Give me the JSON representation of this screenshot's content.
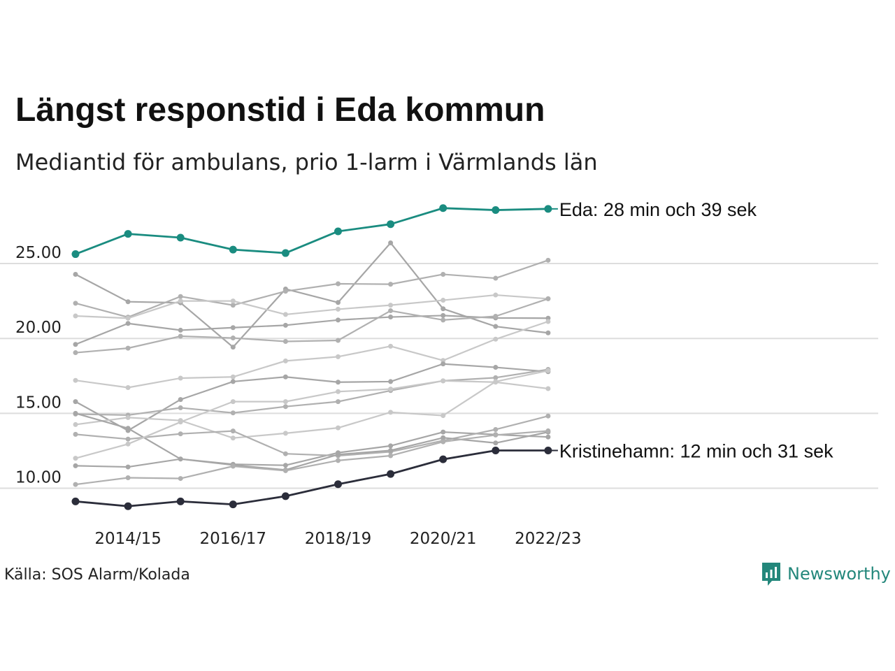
{
  "title": "Längst responstid i Eda kommun",
  "subtitle": "Mediantid för ambulans, prio 1-larm i Värmlands län",
  "source": "Källa: SOS Alarm/Kolada",
  "brand": "Newsworthy",
  "colors": {
    "highlight_top": "#1a8c80",
    "highlight_bottom": "#2b2d3a",
    "others": [
      "#b0b0b0",
      "#c8c8c8",
      "#a6a6a6"
    ],
    "grid": "#dddddd"
  },
  "chart_data": {
    "type": "line",
    "x": [
      "2013/14",
      "2014/15",
      "2015/16",
      "2016/17",
      "2017/18",
      "2018/19",
      "2019/20",
      "2020/21",
      "2021/22",
      "2022/23"
    ],
    "xticks": [
      "2014/15",
      "2016/17",
      "2018/19",
      "2020/21",
      "2022/23"
    ],
    "yticks": [
      10,
      15,
      20,
      25
    ],
    "ytick_labels": [
      "10.00",
      "15.00",
      "20.00",
      "25.00"
    ],
    "ylim": [
      8.5,
      29.5
    ],
    "grid": true,
    "series": [
      {
        "name": "Eda",
        "label": "Eda: 28 min och 39 sek",
        "highlight": "top",
        "values": [
          25.63,
          26.98,
          26.73,
          25.93,
          25.7,
          27.15,
          27.63,
          28.7,
          28.57,
          28.65
        ]
      },
      {
        "name": "Kristinehamn",
        "label": "Kristinehamn: 12 min och 31 sek",
        "highlight": "bottom",
        "values": [
          9.12,
          8.8,
          9.12,
          8.92,
          9.47,
          10.27,
          10.95,
          11.93,
          12.52,
          12.52
        ]
      },
      {
        "values": [
          24.28,
          22.45,
          22.38,
          19.42,
          23.3,
          22.4,
          26.38,
          21.98,
          20.8,
          20.37
        ]
      },
      {
        "values": [
          22.35,
          21.42,
          22.8,
          22.22,
          23.15,
          23.65,
          23.62,
          24.28,
          24.02,
          25.22
        ]
      },
      {
        "values": [
          21.5,
          21.35,
          22.5,
          22.5,
          21.6,
          21.95,
          22.22,
          22.55,
          22.9,
          22.65
        ]
      },
      {
        "values": [
          19.6,
          21.0,
          20.55,
          20.72,
          20.88,
          21.23,
          21.43,
          21.53,
          21.37,
          21.35
        ]
      },
      {
        "values": [
          19.05,
          19.35,
          20.15,
          20.03,
          19.8,
          19.87,
          21.85,
          21.23,
          21.48,
          22.65
        ]
      },
      {
        "values": [
          17.2,
          16.72,
          17.35,
          17.43,
          18.5,
          18.78,
          19.48,
          18.53,
          19.95,
          21.13
        ]
      },
      {
        "values": [
          15.78,
          13.85,
          15.92,
          17.12,
          17.43,
          17.08,
          17.12,
          18.3,
          18.07,
          17.78
        ]
      },
      {
        "values": [
          14.95,
          14.88,
          15.37,
          15.03,
          15.45,
          15.78,
          16.52,
          17.17,
          17.38,
          17.93
        ]
      },
      {
        "values": [
          14.25,
          14.72,
          14.52,
          13.35,
          13.67,
          14.03,
          15.07,
          14.85,
          17.12,
          17.85
        ]
      },
      {
        "values": [
          15.0,
          14.0,
          11.95,
          11.6,
          11.53,
          12.37,
          12.83,
          13.75,
          13.58,
          13.42
        ]
      },
      {
        "values": [
          13.6,
          13.28,
          13.63,
          13.82,
          12.3,
          12.17,
          12.43,
          13.18,
          13.92,
          14.82
        ]
      },
      {
        "values": [
          12.0,
          12.95,
          14.42,
          15.78,
          15.78,
          16.45,
          16.62,
          17.17,
          17.08,
          16.65
        ]
      },
      {
        "values": [
          11.5,
          11.42,
          11.95,
          11.55,
          11.22,
          12.25,
          12.52,
          13.37,
          13.02,
          13.75
        ]
      },
      {
        "values": [
          10.25,
          10.7,
          10.65,
          11.47,
          11.17,
          11.85,
          12.17,
          13.1,
          13.55,
          13.83
        ]
      }
    ]
  }
}
